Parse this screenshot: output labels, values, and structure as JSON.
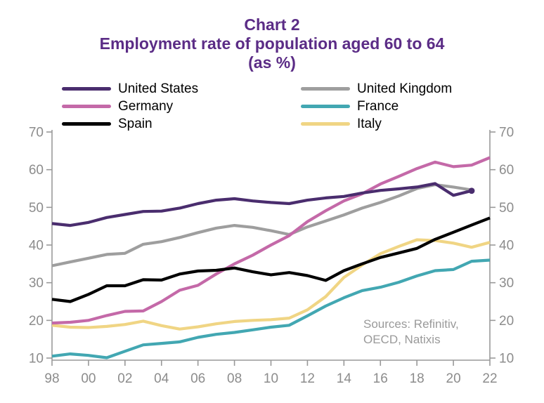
{
  "title": {
    "line1": "Chart 2",
    "line2": "Employment rate of population aged 60 to 64",
    "line3": "(as %)"
  },
  "source_note": {
    "line1": "Sources: Refinitiv,",
    "line2": "OECD, Natixis"
  },
  "colors": {
    "title_text": "#5b2c86",
    "axis_line": "#999999",
    "axis_text": "#8c8c8c",
    "legend_text": "#000000",
    "source_text": "#9a9a9a",
    "background": "#ffffff"
  },
  "chart_data": {
    "type": "line",
    "title": "Chart 2 — Employment rate of population aged 60 to 64 (as %)",
    "xlabel": "",
    "ylabel": "",
    "ylim": [
      10,
      70
    ],
    "y_ticks": [
      10,
      20,
      30,
      40,
      50,
      60,
      70
    ],
    "x": [
      1998,
      1999,
      2000,
      2001,
      2002,
      2003,
      2004,
      2005,
      2006,
      2007,
      2008,
      2009,
      2010,
      2011,
      2012,
      2013,
      2014,
      2015,
      2016,
      2017,
      2018,
      2019,
      2020,
      2021,
      2022
    ],
    "x_tick_years": [
      1998,
      2000,
      2002,
      2004,
      2006,
      2008,
      2010,
      2012,
      2014,
      2016,
      2018,
      2020,
      2022
    ],
    "x_tick_labels": [
      "98",
      "00",
      "02",
      "04",
      "06",
      "08",
      "10",
      "12",
      "14",
      "16",
      "18",
      "20",
      "22"
    ],
    "grid": false,
    "legend_position": "top",
    "series": [
      {
        "name": "United States",
        "color": "#4a2d6e",
        "end_marker": true,
        "values": [
          45.7,
          45.2,
          46.0,
          47.3,
          48.1,
          48.9,
          49.0,
          49.8,
          51.0,
          51.9,
          52.3,
          51.7,
          51.3,
          51.0,
          51.9,
          52.5,
          52.9,
          53.8,
          54.5,
          54.9,
          55.4,
          56.3,
          53.2,
          54.4,
          null
        ]
      },
      {
        "name": "Germany",
        "color": "#c469a8",
        "end_marker": false,
        "values": [
          19.3,
          19.5,
          20.0,
          21.3,
          22.4,
          22.5,
          25.0,
          28.0,
          29.3,
          32.3,
          35.0,
          37.3,
          40.0,
          42.5,
          46.2,
          49.1,
          51.7,
          53.6,
          56.2,
          58.2,
          60.3,
          62.0,
          60.8,
          61.2,
          63.2
        ]
      },
      {
        "name": "Spain",
        "color": "#000000",
        "end_marker": false,
        "values": [
          25.6,
          25.0,
          26.9,
          29.2,
          29.2,
          30.8,
          30.7,
          32.3,
          33.1,
          33.3,
          33.9,
          32.9,
          32.1,
          32.7,
          31.9,
          30.6,
          33.2,
          35.0,
          36.7,
          37.9,
          39.1,
          41.5,
          43.4,
          45.3,
          47.2
        ]
      },
      {
        "name": "United Kingdom",
        "color": "#9e9e9e",
        "end_marker": false,
        "values": [
          34.5,
          35.5,
          36.5,
          37.5,
          37.8,
          40.2,
          40.9,
          42.0,
          43.3,
          44.5,
          45.2,
          44.7,
          43.8,
          42.8,
          44.8,
          46.4,
          48.0,
          49.8,
          51.3,
          53.0,
          55.0,
          56.0,
          55.4,
          54.6,
          null
        ]
      },
      {
        "name": "France",
        "color": "#42a7b2",
        "end_marker": false,
        "values": [
          10.5,
          11.1,
          10.7,
          10.1,
          11.8,
          13.5,
          13.9,
          14.3,
          15.5,
          16.3,
          16.8,
          17.5,
          18.2,
          18.7,
          21.2,
          23.8,
          26.0,
          27.9,
          28.8,
          30.1,
          31.8,
          33.2,
          33.5,
          35.7,
          36.0
        ]
      },
      {
        "name": "Italy",
        "color": "#f0d584",
        "end_marker": false,
        "values": [
          18.7,
          18.2,
          18.1,
          18.4,
          18.9,
          19.8,
          18.6,
          17.7,
          18.3,
          19.1,
          19.7,
          20.0,
          20.2,
          20.6,
          22.8,
          26.3,
          31.4,
          34.7,
          37.7,
          39.6,
          41.4,
          41.2,
          40.5,
          39.4,
          40.7
        ]
      }
    ]
  }
}
